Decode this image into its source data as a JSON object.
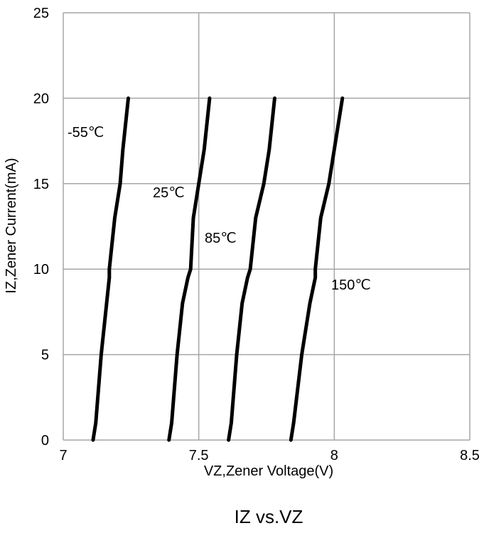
{
  "chart_data": {
    "type": "line",
    "title": "IZ vs.VZ",
    "xlabel": "VZ,Zener Voltage(V)",
    "ylabel": "IZ,Zener Current(mA)",
    "xlim": [
      7,
      8.5
    ],
    "ylim": [
      0,
      25
    ],
    "xticks": [
      "7",
      "7.5",
      "8",
      "8.5"
    ],
    "yticks": [
      "0",
      "5",
      "10",
      "15",
      "20",
      "25"
    ],
    "grid": true,
    "series": [
      {
        "name": "-55℃",
        "x": [
          7.11,
          7.12,
          7.14,
          7.16,
          7.17,
          7.17,
          7.19,
          7.21,
          7.22,
          7.24
        ],
        "y": [
          0,
          1,
          5,
          8,
          9.5,
          10,
          13,
          15,
          17,
          20
        ]
      },
      {
        "name": "25℃",
        "x": [
          7.39,
          7.4,
          7.42,
          7.44,
          7.46,
          7.47,
          7.48,
          7.5,
          7.52,
          7.54
        ],
        "y": [
          0,
          1,
          5,
          8,
          9.5,
          10,
          13,
          15,
          17,
          20
        ]
      },
      {
        "name": "85℃",
        "x": [
          7.61,
          7.62,
          7.64,
          7.66,
          7.68,
          7.69,
          7.71,
          7.74,
          7.76,
          7.78
        ],
        "y": [
          0,
          1,
          5,
          8,
          9.5,
          10,
          13,
          15,
          17,
          20
        ]
      },
      {
        "name": "150℃",
        "x": [
          7.84,
          7.85,
          7.88,
          7.91,
          7.93,
          7.93,
          7.95,
          7.98,
          8.0,
          8.03
        ],
        "y": [
          0,
          1,
          5,
          8,
          9.5,
          10,
          13,
          15,
          17,
          20
        ]
      }
    ]
  }
}
